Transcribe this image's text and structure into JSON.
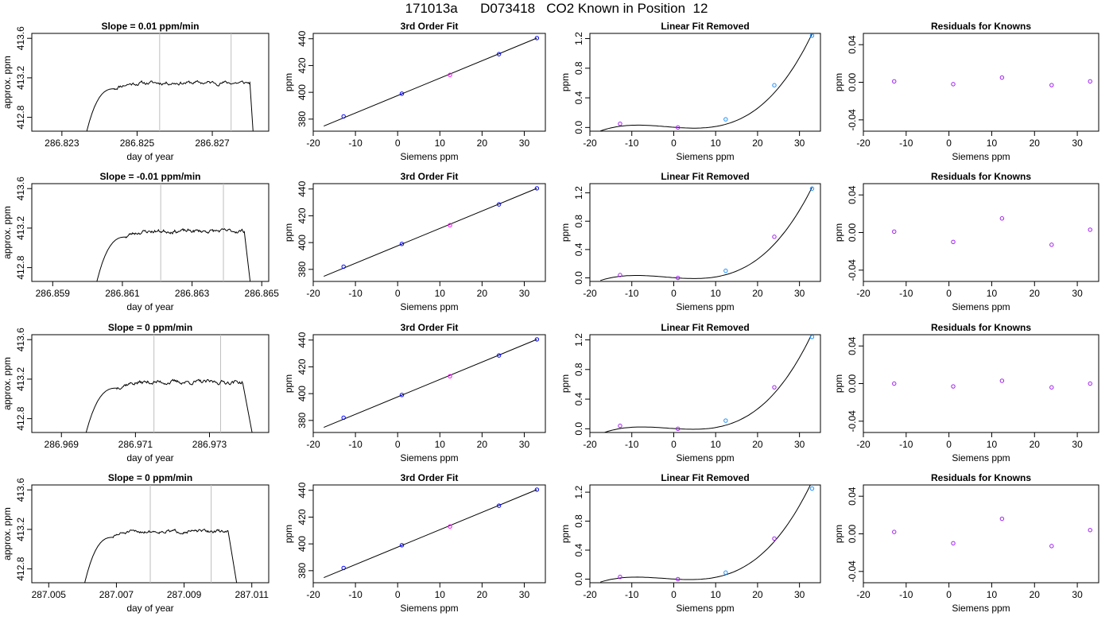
{
  "title": "171013a      D073418   CO2 Known in Position  12",
  "colors": {
    "line": "#000000",
    "grid_marker": "#bebebe",
    "point_blue": "#0000ff",
    "point_purple": "#a020f0",
    "point_magenta": "#ff00ff",
    "point_cyan": "#1e90ff"
  },
  "chart_data": [
    {
      "type": "line",
      "row": 0,
      "col": 0,
      "title": "Slope =  0.01  ppm/min",
      "xlabel": "day of year",
      "ylabel": "approx. ppm",
      "xlim": [
        286.8222,
        286.8285
      ],
      "ylim": [
        412.66,
        413.65
      ],
      "xticks": [
        "286.823",
        "286.825",
        "286.827"
      ],
      "xtick_values": [
        286.823,
        286.825,
        286.827
      ],
      "yticks": [
        "412.8",
        "413.2",
        "413.6"
      ],
      "ytick_values": [
        412.8,
        413.2,
        413.6
      ],
      "vlines": [
        286.8256,
        286.8275
      ],
      "trace": {
        "start": 286.8236,
        "end": 286.8281,
        "plateau_start": 286.8244,
        "plateau_end": 286.828,
        "level": 413.15,
        "noise": 0.018,
        "seed": 11
      }
    },
    {
      "type": "line",
      "row": 1,
      "col": 0,
      "title": "Slope =  -0.01  ppm/min",
      "xlabel": "day of year",
      "ylabel": "approx. ppm",
      "xlim": [
        286.8584,
        286.8652
      ],
      "ylim": [
        412.66,
        413.65
      ],
      "xticks": [
        "286.859",
        "286.861",
        "286.863",
        "286.865"
      ],
      "xtick_values": [
        286.859,
        286.861,
        286.863,
        286.865
      ],
      "yticks": [
        "412.8",
        "413.2",
        "413.6"
      ],
      "ytick_values": [
        412.8,
        413.2,
        413.6
      ],
      "vlines": [
        286.8621,
        286.8639
      ],
      "trace": {
        "start": 286.8602,
        "end": 286.8647,
        "plateau_start": 286.8611,
        "plateau_end": 286.8645,
        "level": 413.17,
        "noise": 0.018,
        "seed": 23
      }
    },
    {
      "type": "line",
      "row": 2,
      "col": 0,
      "title": "Slope =  0  ppm/min",
      "xlabel": "day of year",
      "ylabel": "approx. ppm",
      "xlim": [
        286.9682,
        286.9746
      ],
      "ylim": [
        412.66,
        413.65
      ],
      "xticks": [
        "286.969",
        "286.971",
        "286.973"
      ],
      "xtick_values": [
        286.969,
        286.971,
        286.973
      ],
      "yticks": [
        "412.8",
        "413.2",
        "413.6"
      ],
      "ytick_values": [
        412.8,
        413.2,
        413.6
      ],
      "vlines": [
        286.9715,
        286.9733
      ],
      "trace": {
        "start": 286.9696,
        "end": 286.9742,
        "plateau_start": 286.9705,
        "plateau_end": 286.9739,
        "level": 413.17,
        "noise": 0.02,
        "seed": 37
      }
    },
    {
      "type": "line",
      "row": 3,
      "col": 0,
      "title": "Slope =  0  ppm/min",
      "xlabel": "day of year",
      "ylabel": "approx. ppm",
      "xlim": [
        287.0045,
        287.0115
      ],
      "ylim": [
        412.66,
        413.65
      ],
      "xticks": [
        "287.005",
        "287.007",
        "287.009",
        "287.011"
      ],
      "xtick_values": [
        287.005,
        287.007,
        287.009,
        287.011
      ],
      "yticks": [
        "412.8",
        "413.2",
        "413.6"
      ],
      "ytick_values": [
        412.8,
        413.2,
        413.6
      ],
      "vlines": [
        287.008,
        287.0098
      ],
      "trace": {
        "start": 287.006,
        "end": 287.0106,
        "plateau_start": 287.0069,
        "plateau_end": 287.0103,
        "level": 413.18,
        "noise": 0.015,
        "seed": 51
      }
    },
    {
      "type": "scatter",
      "row": 0,
      "col": 1,
      "title": "3rd Order Fit",
      "xlabel": "Siemens ppm",
      "ylabel": "ppm",
      "xlim": [
        -20,
        35
      ],
      "ylim": [
        371,
        444
      ],
      "xticks": [
        "-20",
        "-10",
        "0",
        "10",
        "20",
        "30"
      ],
      "xtick_values": [
        -20,
        -10,
        0,
        10,
        20,
        30
      ],
      "yticks": [
        "380",
        "400",
        "420",
        "440"
      ],
      "ytick_values": [
        380,
        400,
        420,
        440
      ],
      "points": [
        [
          -12.8,
          382.0
        ],
        [
          1.0,
          399.0
        ],
        [
          12.4,
          413.0
        ],
        [
          24.0,
          428.5
        ],
        [
          33.0,
          440.5
        ]
      ],
      "point_colors": [
        "point_blue",
        "point_blue",
        "point_magenta",
        "point_blue",
        "point_blue"
      ],
      "fit_line": {
        "x": [
          -17.5,
          33.0
        ],
        "y": [
          374.8,
          440.5
        ]
      }
    },
    {
      "type": "scatter",
      "row": 1,
      "col": 1,
      "title": "3rd Order Fit",
      "xlabel": "Siemens ppm",
      "ylabel": "ppm",
      "xlim": [
        -20,
        35
      ],
      "ylim": [
        371,
        444
      ],
      "xticks": [
        "-20",
        "-10",
        "0",
        "10",
        "20",
        "30"
      ],
      "xtick_values": [
        -20,
        -10,
        0,
        10,
        20,
        30
      ],
      "yticks": [
        "380",
        "400",
        "420",
        "440"
      ],
      "ytick_values": [
        380,
        400,
        420,
        440
      ],
      "points": [
        [
          -12.8,
          382.0
        ],
        [
          1.0,
          399.0
        ],
        [
          12.4,
          413.0
        ],
        [
          24.0,
          428.5
        ],
        [
          33.0,
          440.5
        ]
      ],
      "point_colors": [
        "point_blue",
        "point_blue",
        "point_magenta",
        "point_blue",
        "point_blue"
      ],
      "fit_line": {
        "x": [
          -17.5,
          33.0
        ],
        "y": [
          374.8,
          440.5
        ]
      }
    },
    {
      "type": "scatter",
      "row": 2,
      "col": 1,
      "title": "3rd Order Fit",
      "xlabel": "Siemens ppm",
      "ylabel": "ppm",
      "xlim": [
        -20,
        35
      ],
      "ylim": [
        371,
        444
      ],
      "xticks": [
        "-20",
        "-10",
        "0",
        "10",
        "20",
        "30"
      ],
      "xtick_values": [
        -20,
        -10,
        0,
        10,
        20,
        30
      ],
      "yticks": [
        "380",
        "400",
        "420",
        "440"
      ],
      "ytick_values": [
        380,
        400,
        420,
        440
      ],
      "points": [
        [
          -12.8,
          382.0
        ],
        [
          1.0,
          399.0
        ],
        [
          12.4,
          413.0
        ],
        [
          24.0,
          428.5
        ],
        [
          33.0,
          440.5
        ]
      ],
      "point_colors": [
        "point_blue",
        "point_blue",
        "point_magenta",
        "point_blue",
        "point_blue"
      ],
      "fit_line": {
        "x": [
          -17.5,
          33.0
        ],
        "y": [
          374.8,
          440.5
        ]
      }
    },
    {
      "type": "scatter",
      "row": 3,
      "col": 1,
      "title": "3rd Order Fit",
      "xlabel": "Siemens ppm",
      "ylabel": "ppm",
      "xlim": [
        -20,
        35
      ],
      "ylim": [
        371,
        444
      ],
      "xticks": [
        "-20",
        "-10",
        "0",
        "10",
        "20",
        "30"
      ],
      "xtick_values": [
        -20,
        -10,
        0,
        10,
        20,
        30
      ],
      "yticks": [
        "380",
        "400",
        "420",
        "440"
      ],
      "ytick_values": [
        380,
        400,
        420,
        440
      ],
      "points": [
        [
          -12.8,
          382.0
        ],
        [
          1.0,
          399.0
        ],
        [
          12.4,
          413.0
        ],
        [
          24.0,
          428.5
        ],
        [
          33.0,
          440.5
        ]
      ],
      "point_colors": [
        "point_blue",
        "point_blue",
        "point_magenta",
        "point_blue",
        "point_blue"
      ],
      "fit_line": {
        "x": [
          -17.5,
          33.0
        ],
        "y": [
          374.8,
          440.5
        ]
      }
    },
    {
      "type": "scatter",
      "row": 0,
      "col": 2,
      "title": "Linear Fit Removed",
      "xlabel": "Siemens ppm",
      "ylabel": "ppm",
      "xlim": [
        -20,
        35
      ],
      "ylim": [
        -0.05,
        1.27
      ],
      "xticks": [
        "-20",
        "-10",
        "0",
        "10",
        "20",
        "30"
      ],
      "xtick_values": [
        -20,
        -10,
        0,
        10,
        20,
        30
      ],
      "yticks": [
        "0.0",
        "0.4",
        "0.8",
        "1.2"
      ],
      "ytick_values": [
        0.0,
        0.4,
        0.8,
        1.2
      ],
      "points": [
        [
          -12.8,
          0.05
        ],
        [
          1.0,
          0.0
        ],
        [
          12.4,
          0.11
        ],
        [
          24.0,
          0.57
        ],
        [
          33.0,
          1.24
        ]
      ],
      "point_colors": [
        "point_purple",
        "point_purple",
        "point_cyan",
        "point_cyan",
        "point_cyan"
      ],
      "curve": {
        "x0": -17.5,
        "x1": 33.0,
        "poly": [
          0.0032,
          -0.00418,
          0.000182,
          3.34e-05
        ]
      }
    },
    {
      "type": "scatter",
      "row": 1,
      "col": 2,
      "title": "Linear Fit Removed",
      "xlabel": "Siemens ppm",
      "ylabel": "ppm",
      "xlim": [
        -20,
        35
      ],
      "ylim": [
        -0.05,
        1.33
      ],
      "xticks": [
        "-20",
        "-10",
        "0",
        "10",
        "20",
        "30"
      ],
      "xtick_values": [
        -20,
        -10,
        0,
        10,
        20,
        30
      ],
      "yticks": [
        "0.0",
        "0.4",
        "0.8",
        "1.2"
      ],
      "ytick_values": [
        0.0,
        0.4,
        0.8,
        1.2
      ],
      "points": [
        [
          -12.8,
          0.04
        ],
        [
          1.0,
          0.0
        ],
        [
          12.4,
          0.1
        ],
        [
          24.0,
          0.58
        ],
        [
          33.0,
          1.26
        ]
      ],
      "point_colors": [
        "point_purple",
        "point_purple",
        "point_cyan",
        "point_purple",
        "point_cyan"
      ],
      "curve": {
        "x0": -17.5,
        "x1": 33.0,
        "poly": [
          0.003,
          -0.00431,
          0.000205,
          3.32e-05
        ]
      }
    },
    {
      "type": "scatter",
      "row": 2,
      "col": 2,
      "title": "Linear Fit Removed",
      "xlabel": "Siemens ppm",
      "ylabel": "ppm",
      "xlim": [
        -20,
        35
      ],
      "ylim": [
        -0.05,
        1.27
      ],
      "xticks": [
        "-20",
        "-10",
        "0",
        "10",
        "20",
        "30"
      ],
      "xtick_values": [
        -20,
        -10,
        0,
        10,
        20,
        30
      ],
      "yticks": [
        "0.0",
        "0.4",
        "0.8",
        "1.2"
      ],
      "ytick_values": [
        0.0,
        0.4,
        0.8,
        1.2
      ],
      "points": [
        [
          -12.8,
          0.04
        ],
        [
          1.0,
          0.0
        ],
        [
          12.4,
          0.11
        ],
        [
          24.0,
          0.56
        ],
        [
          33.0,
          1.24
        ]
      ],
      "point_colors": [
        "point_purple",
        "point_purple",
        "point_cyan",
        "point_purple",
        "point_cyan"
      ],
      "curve": {
        "x0": -17.5,
        "x1": 33.0,
        "poly": [
          0.0032,
          -0.0036,
          0.000155,
          3.43e-05
        ]
      }
    },
    {
      "type": "scatter",
      "row": 3,
      "col": 2,
      "title": "Linear Fit Removed",
      "xlabel": "Siemens ppm",
      "ylabel": "ppm",
      "xlim": [
        -20,
        35
      ],
      "ylim": [
        -0.05,
        1.3
      ],
      "xticks": [
        "-20",
        "-10",
        "0",
        "10",
        "20",
        "30"
      ],
      "xtick_values": [
        -20,
        -10,
        0,
        10,
        20,
        30
      ],
      "yticks": [
        "0.0",
        "0.4",
        "0.8",
        "1.2"
      ],
      "ytick_values": [
        0.0,
        0.4,
        0.8,
        1.2
      ],
      "points": [
        [
          -12.8,
          0.03
        ],
        [
          1.0,
          0.0
        ],
        [
          12.4,
          0.09
        ],
        [
          24.0,
          0.56
        ],
        [
          33.0,
          1.25
        ]
      ],
      "point_colors": [
        "point_purple",
        "point_purple",
        "point_cyan",
        "point_purple",
        "point_cyan"
      ],
      "curve": {
        "x0": -17.5,
        "x1": 33.0,
        "poly": [
          0.0011,
          -0.00339,
          0.000247,
          3.31e-05
        ]
      }
    },
    {
      "type": "scatter",
      "row": 0,
      "col": 3,
      "title": "Residuals for Knowns",
      "xlabel": "Siemens ppm",
      "ylabel": "ppm",
      "xlim": [
        -20,
        35
      ],
      "ylim": [
        -0.052,
        0.052
      ],
      "xticks": [
        "-20",
        "-10",
        "0",
        "10",
        "20",
        "30"
      ],
      "xtick_values": [
        -20,
        -10,
        0,
        10,
        20,
        30
      ],
      "yticks": [
        "-0.04",
        "0.00",
        "0.04"
      ],
      "ytick_values": [
        -0.04,
        0.0,
        0.04
      ],
      "points": [
        [
          -12.8,
          0.001
        ],
        [
          1.0,
          -0.002
        ],
        [
          12.4,
          0.005
        ],
        [
          24.0,
          -0.003
        ],
        [
          33.0,
          0.001
        ]
      ],
      "point_colors": [
        "point_purple",
        "point_purple",
        "point_purple",
        "point_purple",
        "point_purple"
      ]
    },
    {
      "type": "scatter",
      "row": 1,
      "col": 3,
      "title": "Residuals for Knowns",
      "xlabel": "Siemens ppm",
      "ylabel": "ppm",
      "xlim": [
        -20,
        35
      ],
      "ylim": [
        -0.052,
        0.052
      ],
      "xticks": [
        "-20",
        "-10",
        "0",
        "10",
        "20",
        "30"
      ],
      "xtick_values": [
        -20,
        -10,
        0,
        10,
        20,
        30
      ],
      "yticks": [
        "-0.04",
        "0.00",
        "0.04"
      ],
      "ytick_values": [
        -0.04,
        0.0,
        0.04
      ],
      "points": [
        [
          -12.8,
          0.001
        ],
        [
          1.0,
          -0.01
        ],
        [
          12.4,
          0.015
        ],
        [
          24.0,
          -0.013
        ],
        [
          33.0,
          0.003
        ]
      ],
      "point_colors": [
        "point_purple",
        "point_purple",
        "point_purple",
        "point_purple",
        "point_purple"
      ]
    },
    {
      "type": "scatter",
      "row": 2,
      "col": 3,
      "title": "Residuals for Knowns",
      "xlabel": "Siemens ppm",
      "ylabel": "ppm",
      "xlim": [
        -20,
        35
      ],
      "ylim": [
        -0.052,
        0.052
      ],
      "xticks": [
        "-20",
        "-10",
        "0",
        "10",
        "20",
        "30"
      ],
      "xtick_values": [
        -20,
        -10,
        0,
        10,
        20,
        30
      ],
      "yticks": [
        "-0.04",
        "0.00",
        "0.04"
      ],
      "ytick_values": [
        -0.04,
        0.0,
        0.04
      ],
      "points": [
        [
          -12.8,
          0.0
        ],
        [
          1.0,
          -0.003
        ],
        [
          12.4,
          0.003
        ],
        [
          24.0,
          -0.004
        ],
        [
          33.0,
          0.0
        ]
      ],
      "point_colors": [
        "point_purple",
        "point_purple",
        "point_purple",
        "point_purple",
        "point_purple"
      ]
    },
    {
      "type": "scatter",
      "row": 3,
      "col": 3,
      "title": "Residuals for Knowns",
      "xlabel": "Siemens ppm",
      "ylabel": "ppm",
      "xlim": [
        -20,
        35
      ],
      "ylim": [
        -0.052,
        0.052
      ],
      "xticks": [
        "-20",
        "-10",
        "0",
        "10",
        "20",
        "30"
      ],
      "xtick_values": [
        -20,
        -10,
        0,
        10,
        20,
        30
      ],
      "yticks": [
        "-0.04",
        "0.00",
        "0.04"
      ],
      "ytick_values": [
        -0.04,
        0.0,
        0.04
      ],
      "points": [
        [
          -12.8,
          0.002
        ],
        [
          1.0,
          -0.01
        ],
        [
          12.4,
          0.016
        ],
        [
          24.0,
          -0.013
        ],
        [
          33.0,
          0.004
        ]
      ],
      "point_colors": [
        "point_purple",
        "point_purple",
        "point_purple",
        "point_purple",
        "point_purple"
      ]
    }
  ]
}
